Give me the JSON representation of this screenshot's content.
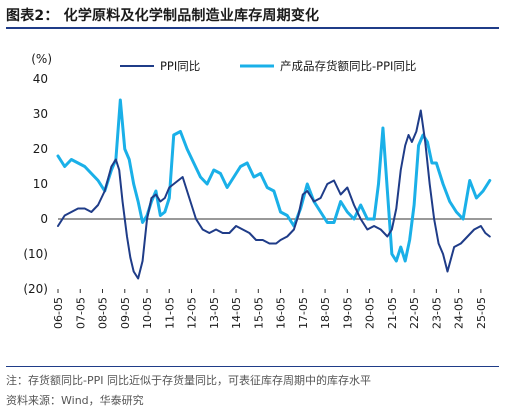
{
  "title": "图表2： 化学原料及化学制品制造业库存周期变化",
  "note": "注：存货额同比-PPI 同比近似于存货量同比，可表征库存周期中的库存水平",
  "source": "资料来源：Wind，华泰研究",
  "chart_data": {
    "type": "line",
    "y_unit": "(%)",
    "ylim": [
      -20,
      40
    ],
    "yticks": [
      40,
      30,
      20,
      10,
      0,
      -10,
      -20
    ],
    "ytick_labels": [
      "40",
      "30",
      "20",
      "10",
      "0",
      "(10)",
      "(20)"
    ],
    "xlim": [
      2006.0,
      2025.5
    ],
    "xticks": [
      "06-05",
      "07-05",
      "08-05",
      "09-05",
      "10-05",
      "11-05",
      "12-05",
      "13-05",
      "14-05",
      "15-05",
      "16-05",
      "17-05",
      "18-05",
      "19-05",
      "20-05",
      "21-05",
      "22-05",
      "23-05",
      "24-05",
      "25-05"
    ],
    "grid": false,
    "legend_position": "top",
    "series": [
      {
        "name": "PPI同比",
        "color": "#1f3c88",
        "x": [
          2006.0,
          2006.3,
          2006.6,
          2006.9,
          2007.2,
          2007.5,
          2007.8,
          2008.1,
          2008.4,
          2008.6,
          2008.75,
          2008.9,
          2009.1,
          2009.25,
          2009.4,
          2009.6,
          2009.8,
          2010.0,
          2010.2,
          2010.4,
          2010.6,
          2010.8,
          2011.0,
          2011.2,
          2011.4,
          2011.6,
          2011.9,
          2012.2,
          2012.5,
          2012.8,
          2013.1,
          2013.4,
          2013.7,
          2014.0,
          2014.3,
          2014.6,
          2014.9,
          2015.2,
          2015.5,
          2015.8,
          2016.0,
          2016.3,
          2016.6,
          2016.8,
          2017.0,
          2017.2,
          2017.5,
          2017.8,
          2018.1,
          2018.4,
          2018.7,
          2019.0,
          2019.3,
          2019.6,
          2019.9,
          2020.2,
          2020.5,
          2020.8,
          2021.0,
          2021.2,
          2021.4,
          2021.6,
          2021.75,
          2021.9,
          2022.1,
          2022.3,
          2022.5,
          2022.7,
          2022.9,
          2023.1,
          2023.3,
          2023.5,
          2023.8,
          2024.1,
          2024.4,
          2024.7,
          2025.0,
          2025.2,
          2025.4
        ],
        "values": [
          -2,
          1,
          2,
          3,
          3,
          2,
          4,
          8,
          15,
          17,
          14,
          5,
          -5,
          -11,
          -15,
          -17,
          -12,
          0,
          6,
          7,
          5,
          6,
          9,
          10,
          11,
          12,
          6,
          0,
          -3,
          -4,
          -3,
          -4,
          -4,
          -2,
          -3,
          -4,
          -6,
          -6,
          -7,
          -7,
          -6,
          -5,
          -3,
          1,
          7,
          8,
          5,
          6,
          10,
          11,
          7,
          9,
          4,
          0,
          -3,
          -2,
          -3,
          -5,
          -3,
          3,
          14,
          21,
          24,
          22,
          25,
          31,
          22,
          10,
          0,
          -7,
          -10,
          -15,
          -8,
          -7,
          -5,
          -3,
          -2,
          -4,
          -5
        ]
      },
      {
        "name": "产成品存货额同比-PPI同比",
        "color": "#1ab0e8",
        "x": [
          2006.0,
          2006.3,
          2006.6,
          2006.9,
          2007.2,
          2007.5,
          2007.8,
          2008.1,
          2008.4,
          2008.6,
          2008.8,
          2009.0,
          2009.2,
          2009.4,
          2009.6,
          2009.8,
          2010.0,
          2010.2,
          2010.4,
          2010.6,
          2010.8,
          2011.0,
          2011.2,
          2011.5,
          2011.8,
          2012.1,
          2012.4,
          2012.7,
          2013.0,
          2013.3,
          2013.6,
          2013.9,
          2014.2,
          2014.5,
          2014.8,
          2015.1,
          2015.4,
          2015.7,
          2016.0,
          2016.3,
          2016.6,
          2016.9,
          2017.2,
          2017.5,
          2017.8,
          2018.1,
          2018.4,
          2018.7,
          2019.0,
          2019.3,
          2019.6,
          2019.9,
          2020.2,
          2020.4,
          2020.6,
          2020.8,
          2021.0,
          2021.2,
          2021.4,
          2021.6,
          2021.8,
          2022.0,
          2022.2,
          2022.4,
          2022.6,
          2022.8,
          2023.0,
          2023.3,
          2023.6,
          2023.9,
          2024.2,
          2024.5,
          2024.8,
          2025.1,
          2025.4
        ],
        "values": [
          18,
          15,
          17,
          16,
          15,
          13,
          11,
          8,
          14,
          17,
          34,
          20,
          17,
          10,
          5,
          -1,
          1,
          5,
          8,
          1,
          2,
          6,
          24,
          25,
          20,
          16,
          12,
          10,
          14,
          13,
          9,
          12,
          15,
          16,
          12,
          13,
          9,
          8,
          2,
          1,
          -2,
          3,
          10,
          5,
          2,
          -1,
          -1,
          5,
          2,
          0,
          4,
          0,
          0,
          10,
          26,
          8,
          -10,
          -12,
          -8,
          -12,
          -6,
          4,
          21,
          24,
          22,
          16,
          16,
          10,
          5,
          2,
          0,
          11,
          6,
          8,
          11
        ]
      }
    ]
  }
}
